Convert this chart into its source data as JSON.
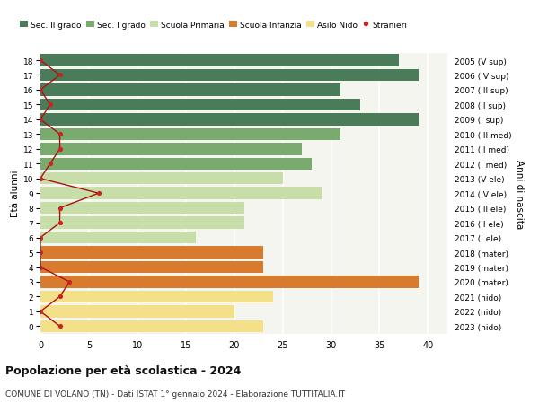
{
  "ages": [
    18,
    17,
    16,
    15,
    14,
    13,
    12,
    11,
    10,
    9,
    8,
    7,
    6,
    5,
    4,
    3,
    2,
    1,
    0
  ],
  "labels_right": [
    "2005 (V sup)",
    "2006 (IV sup)",
    "2007 (III sup)",
    "2008 (II sup)",
    "2009 (I sup)",
    "2010 (III med)",
    "2011 (II med)",
    "2012 (I med)",
    "2013 (V ele)",
    "2014 (IV ele)",
    "2015 (III ele)",
    "2016 (II ele)",
    "2017 (I ele)",
    "2018 (mater)",
    "2019 (mater)",
    "2020 (mater)",
    "2021 (nido)",
    "2022 (nido)",
    "2023 (nido)"
  ],
  "bar_values": [
    37,
    39,
    31,
    33,
    39,
    31,
    27,
    28,
    25,
    29,
    21,
    21,
    16,
    23,
    23,
    39,
    24,
    20,
    23
  ],
  "bar_colors": [
    "#4a7c59",
    "#4a7c59",
    "#4a7c59",
    "#4a7c59",
    "#4a7c59",
    "#7aab6e",
    "#7aab6e",
    "#7aab6e",
    "#c8dea8",
    "#c8dea8",
    "#c8dea8",
    "#c8dea8",
    "#c8dea8",
    "#d97b2e",
    "#d97b2e",
    "#d97b2e",
    "#f5e08a",
    "#f5e08a",
    "#f5e08a"
  ],
  "stranieri_values": [
    0,
    2,
    0,
    1,
    0,
    2,
    2,
    1,
    0,
    6,
    2,
    2,
    0,
    0,
    0,
    3,
    2,
    0,
    2
  ],
  "legend_labels": [
    "Sec. II grado",
    "Sec. I grado",
    "Scuola Primaria",
    "Scuola Infanzia",
    "Asilo Nido",
    "Stranieri"
  ],
  "legend_colors": [
    "#4a7c59",
    "#7aab6e",
    "#c8dea8",
    "#d97b2e",
    "#f5e08a",
    "#cc2222"
  ],
  "ylabel_left": "Età alunni",
  "ylabel_right": "Anni di nascita",
  "title": "Popolazione per età scolastica - 2024",
  "subtitle": "COMUNE DI VOLANO (TN) - Dati ISTAT 1° gennaio 2024 - Elaborazione TUTTITALIA.IT",
  "xlim": [
    0,
    42
  ],
  "xticks": [
    0,
    5,
    10,
    15,
    20,
    25,
    30,
    35,
    40
  ],
  "bg_color": "#ffffff",
  "bar_bg_color": "#f5f5f0",
  "grid_color": "#ffffff",
  "bar_height": 0.82
}
